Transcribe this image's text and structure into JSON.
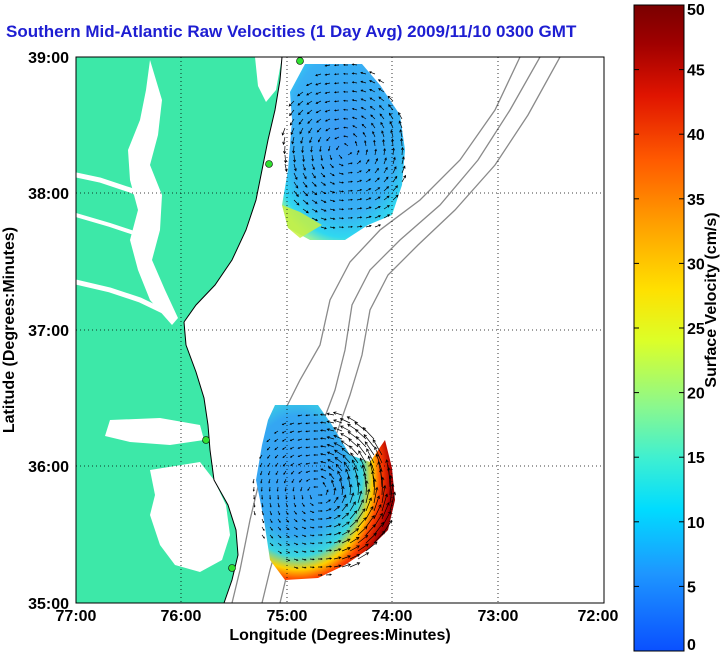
{
  "title": "Southern Mid-Atlantic Raw Velocities (1 Day Avg) 2009/11/10 0300 GMT",
  "x_axis": {
    "label": "Longitude (Degrees:Minutes)",
    "ticks": [
      "77:00",
      "76:00",
      "75:00",
      "74:00",
      "73:00",
      "72:00"
    ]
  },
  "y_axis": {
    "label": "Latitude (Degrees:Minutes)",
    "ticks": [
      "39:00",
      "38:00",
      "37:00",
      "36:00",
      "35:00"
    ]
  },
  "colorbar": {
    "label": "Surface Velocity (cm/s)",
    "min": 0,
    "max": 50,
    "ticks": [
      "0",
      "5",
      "10",
      "15",
      "20",
      "25",
      "30",
      "35",
      "40",
      "45",
      "50"
    ]
  },
  "colors": {
    "land": "#3de8a8",
    "title": "#1e1ed2",
    "bathymetry": "#8a8a8a"
  },
  "grid": "dotted",
  "sites": [
    {
      "name": "north-site-1"
    },
    {
      "name": "north-site-2"
    },
    {
      "name": "south-site-1"
    },
    {
      "name": "south-site-2"
    }
  ]
}
